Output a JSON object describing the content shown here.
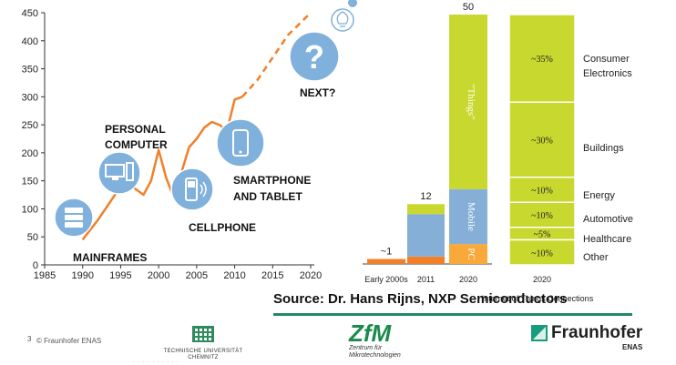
{
  "chart_data": [
    {
      "type": "line",
      "y_ticks": [
        0,
        50,
        100,
        150,
        200,
        250,
        300,
        350,
        400,
        450
      ],
      "x_ticks": [
        1985,
        1990,
        1995,
        2000,
        2005,
        2010,
        2015,
        2020
      ],
      "xlim": [
        1985,
        2020
      ],
      "ylim": [
        0,
        450
      ],
      "grid": false,
      "series": [
        {
          "style": "solid",
          "color": "#f0802a",
          "x": [
            1990,
            1992,
            1995,
            1996,
            1997,
            1998,
            1999,
            2000,
            2001,
            2002,
            2003,
            2004,
            2005,
            2006,
            2007,
            2008,
            2009,
            2010,
            2011
          ],
          "y": [
            45,
            80,
            140,
            145,
            135,
            125,
            150,
            205,
            155,
            120,
            165,
            210,
            225,
            245,
            255,
            250,
            240,
            295,
            300
          ]
        },
        {
          "style": "dashed",
          "color": "#f0802a",
          "x": [
            2011,
            2013,
            2015,
            2017,
            2020
          ],
          "y": [
            300,
            330,
            370,
            410,
            450
          ]
        }
      ],
      "annotations": [
        {
          "text": "MAINFRAMES",
          "icon": "server-icon"
        },
        {
          "text": "PERSONAL COMPUTER",
          "icon": "computer-icon"
        },
        {
          "text": "CELLPHONE",
          "icon": "cellphone-icon"
        },
        {
          "text": "SMARTPHONE AND TABLET",
          "icon": "smartphone-icon"
        },
        {
          "text": "NEXT?",
          "icon": "question-icon"
        }
      ]
    },
    {
      "type": "bar",
      "stacked": true,
      "categories": [
        "Early 2000s",
        "2011",
        "2020"
      ],
      "totals": [
        "~1",
        "12",
        "50"
      ],
      "segments": [
        {
          "category": "Early 2000s",
          "values": [
            {
              "label": "",
              "value": 1,
              "color": "#f0802a"
            }
          ]
        },
        {
          "category": "2011",
          "values": [
            {
              "label": "",
              "value": 1.5,
              "color": "#f0802a"
            },
            {
              "label": "",
              "value": 8.5,
              "color": "#86afd7"
            },
            {
              "label": "",
              "value": 2,
              "color": "#c8d82e"
            }
          ]
        },
        {
          "category": "2020",
          "values": [
            {
              "label": "PC",
              "value": 4,
              "color": "#f9a83a"
            },
            {
              "label": "Mobile",
              "value": 11,
              "color": "#86afd7"
            },
            {
              "label": "\"Things\"",
              "value": 35,
              "color": "#c8d82e"
            }
          ]
        }
      ]
    },
    {
      "type": "bar",
      "stacked": true,
      "categories": [
        "2020"
      ],
      "xlabel": "Internet of Things Connections",
      "segments": [
        {
          "label": "~35%",
          "name": "Consumer Electronics",
          "value": 35
        },
        {
          "label": "~30%",
          "name": "Buildings",
          "value": 30
        },
        {
          "label": "~10%",
          "name": "Energy",
          "value": 10
        },
        {
          "label": "~10%",
          "name": "Automotive",
          "value": 10
        },
        {
          "label": "~5%",
          "name": "Healthcare",
          "value": 5
        },
        {
          "label": "~10%",
          "name": "Other",
          "value": 10
        }
      ],
      "color": "#c8d82e"
    }
  ],
  "footer": {
    "source": "Source: Dr. Hans Rijns, NXP Semiconductors",
    "page_number": "3",
    "copyright": "© Fraunhofer ENAS",
    "tu_logo_text_1": "TECHNISCHE UNIVERSITÄT",
    "tu_logo_text_2": "CHEMNITZ",
    "zfm_logo": "ZfM",
    "zfm_sub_1": "Zentrum für",
    "zfm_sub_2": "Mikrotechnologien",
    "fraunhofer_logo": "Fraunhofer",
    "fraunhofer_sub": "ENAS"
  },
  "colors": {
    "orange": "#f0802a",
    "blue": "#86afd7",
    "green": "#c8d82e",
    "light_orange": "#f9a83a",
    "icon_circle": "#7fb1dc",
    "footer_rule": "#1f8a6a"
  }
}
